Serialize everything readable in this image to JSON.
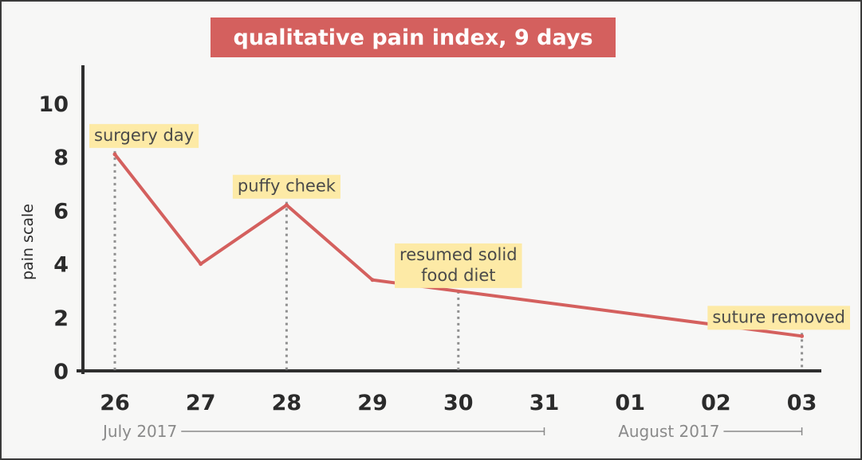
{
  "chart_data": {
    "type": "line",
    "title": "qualitative pain index, 9 days",
    "ylabel": "pain scale",
    "xlabel": "",
    "ylim": [
      0,
      11
    ],
    "yticks": [
      0,
      2,
      4,
      6,
      8,
      10
    ],
    "categories": [
      "26",
      "27",
      "28",
      "29",
      "30",
      "31",
      "01",
      "02",
      "03"
    ],
    "series": [
      {
        "values": [
          8.1,
          4,
          6.2,
          3.4,
          null,
          null,
          null,
          null,
          1.3
        ]
      }
    ],
    "annotations": [
      {
        "text": [
          "surgery day"
        ],
        "category_index": 0
      },
      {
        "text": [
          "puffy cheek"
        ],
        "category_index": 2
      },
      {
        "text": [
          "resumed solid",
          "food diet"
        ],
        "category_index": 4
      },
      {
        "text": [
          "suture removed"
        ],
        "category_index": 8
      }
    ],
    "periods": [
      {
        "label": "July 2017",
        "start_index": 0,
        "end_index": 5
      },
      {
        "label": "August 2017",
        "start_index": 6,
        "end_index": 8
      }
    ],
    "grid": false,
    "line_color": "#d4605e",
    "title_color": "#d4605e",
    "annotation_color": "#fdeaa6"
  }
}
